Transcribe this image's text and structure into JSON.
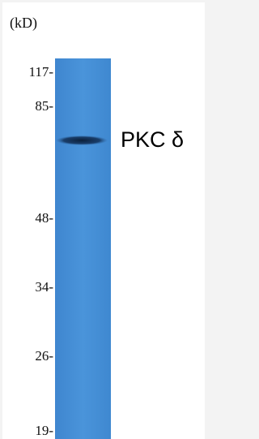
{
  "unit_label": "(kD)",
  "markers": [
    "117-",
    "85-",
    "48-",
    "34-",
    "26-",
    "19-"
  ],
  "band_label": "PKC δ"
}
